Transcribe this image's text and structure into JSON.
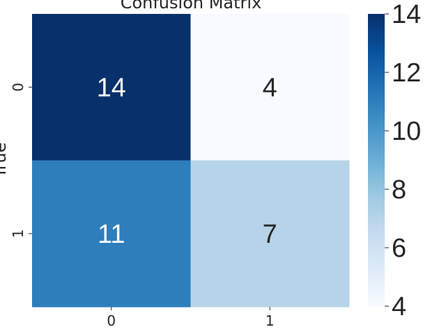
{
  "chart_data": {
    "type": "heatmap",
    "title": "Confusion Matrix",
    "xlabel": "",
    "ylabel": "True",
    "x_categories": [
      "0",
      "1"
    ],
    "y_categories": [
      "0",
      "1"
    ],
    "values": [
      [
        14,
        4
      ],
      [
        11,
        7
      ]
    ],
    "colorbar": {
      "min": 4,
      "max": 14,
      "ticks": [
        "4",
        "6",
        "8",
        "10",
        "12",
        "14"
      ],
      "colormap": "Blues"
    },
    "colors": {
      "low": "#f7fbff",
      "high": "#08306b",
      "text_dark": "#262626",
      "text_light": "#ffffff"
    }
  }
}
